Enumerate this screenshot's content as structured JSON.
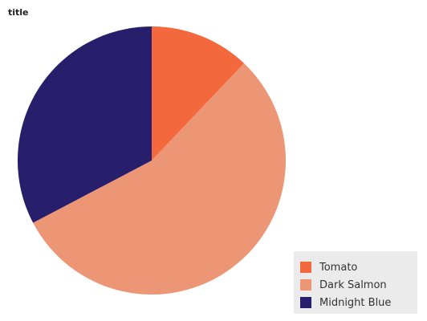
{
  "chart_data": {
    "type": "pie",
    "title": "title",
    "categories": [
      "Tomato",
      "Dark Salmon",
      "Midnight Blue"
    ],
    "values": [
      12.1,
      55.2,
      32.7
    ],
    "colors": [
      "#f4683e",
      "#ec9675",
      "#271f6b"
    ],
    "legend_position": "bottom-right"
  },
  "legend": {
    "items": [
      {
        "label": "Tomato",
        "color": "#f4683e"
      },
      {
        "label": "Dark Salmon",
        "color": "#ec9675"
      },
      {
        "label": "Midnight Blue",
        "color": "#271f6b"
      }
    ]
  }
}
